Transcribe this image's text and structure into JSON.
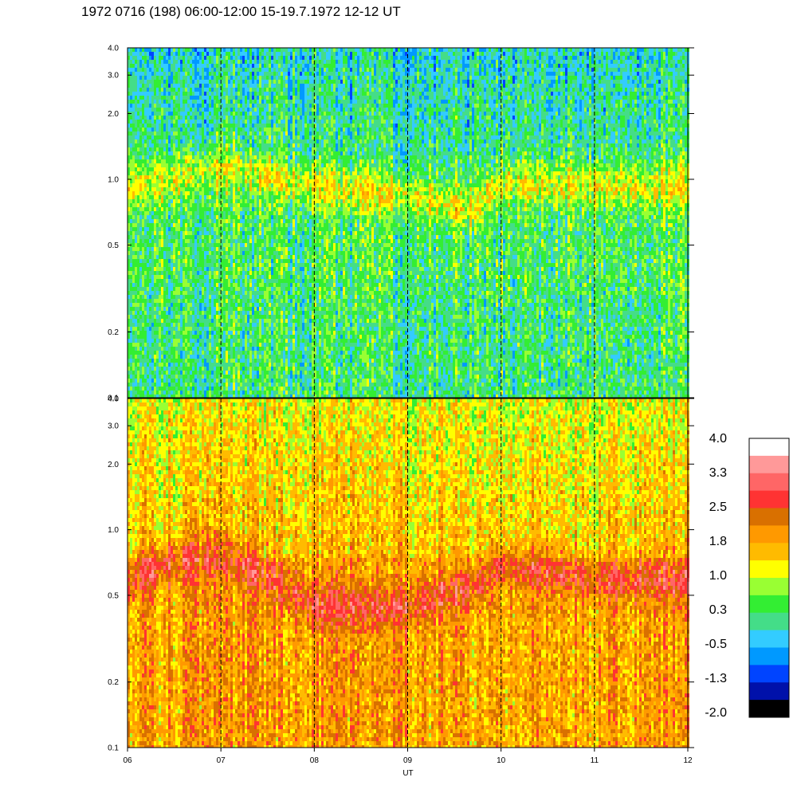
{
  "title": "1972 0716 (198) 06:00-12:00 15-19.7.1972  12-12 UT",
  "chart_data": {
    "type": "heatmap",
    "title": "1972 0716 (198) 06:00-12:00 15-19.7.1972  12-12 UT",
    "xlabel": "UT",
    "ylabel": "",
    "x_ticks": [
      "06",
      "07",
      "08",
      "09",
      "10",
      "11",
      "12"
    ],
    "xlim": [
      6,
      12
    ],
    "y_scale": "log",
    "ylim": [
      0.1,
      4.0
    ],
    "y_ticks": [
      {
        "value": 0.1,
        "label": "0.1"
      },
      {
        "value": 0.2,
        "label": "0.2"
      },
      {
        "value": 0.5,
        "label": "0.5"
      },
      {
        "value": 1.0,
        "label": "1.0"
      },
      {
        "value": 2.0,
        "label": "2.0"
      },
      {
        "value": 3.0,
        "label": "3.0"
      },
      {
        "value": 4.0,
        "label": "4.0"
      }
    ],
    "grid_vertical_dashed_at": [
      7,
      8,
      9,
      10,
      11
    ],
    "panels": [
      {
        "name": "",
        "base_level": 0.3,
        "band_center_by_hour": [
          [
            6,
            0.95
          ],
          [
            7,
            1.15
          ],
          [
            8,
            0.95
          ],
          [
            9,
            0.85
          ],
          [
            9.7,
            0.75
          ],
          [
            10,
            1.0
          ],
          [
            11,
            0.95
          ],
          [
            12,
            0.95
          ]
        ],
        "band_peak_level": 1.2
      },
      {
        "name": "",
        "base_level": 1.6,
        "band_center_by_hour": [
          [
            6,
            0.6
          ],
          [
            6.5,
            0.75
          ],
          [
            7,
            0.8
          ],
          [
            7.5,
            0.6
          ],
          [
            8,
            0.45
          ],
          [
            9,
            0.45
          ],
          [
            9.7,
            0.55
          ],
          [
            10,
            0.7
          ],
          [
            10.5,
            0.65
          ],
          [
            11,
            0.6
          ],
          [
            12,
            0.6
          ]
        ],
        "band_peak_level": 2.4
      }
    ],
    "colorbar": {
      "labels": [
        "4.0",
        "3.3",
        "2.5",
        "1.8",
        "1.0",
        "0.3",
        "-0.5",
        "-1.3",
        "-2.0"
      ],
      "range": [
        -2.0,
        4.0
      ],
      "colors_top_to_bottom": [
        "#ffffff",
        "#ff9999",
        "#ff6666",
        "#ff3333",
        "#d97000",
        "#ff9900",
        "#ffbb00",
        "#ffff00",
        "#99ff33",
        "#33ee33",
        "#44dd88",
        "#33ccff",
        "#0099ff",
        "#0044ff",
        "#0011aa",
        "#000000"
      ]
    }
  }
}
